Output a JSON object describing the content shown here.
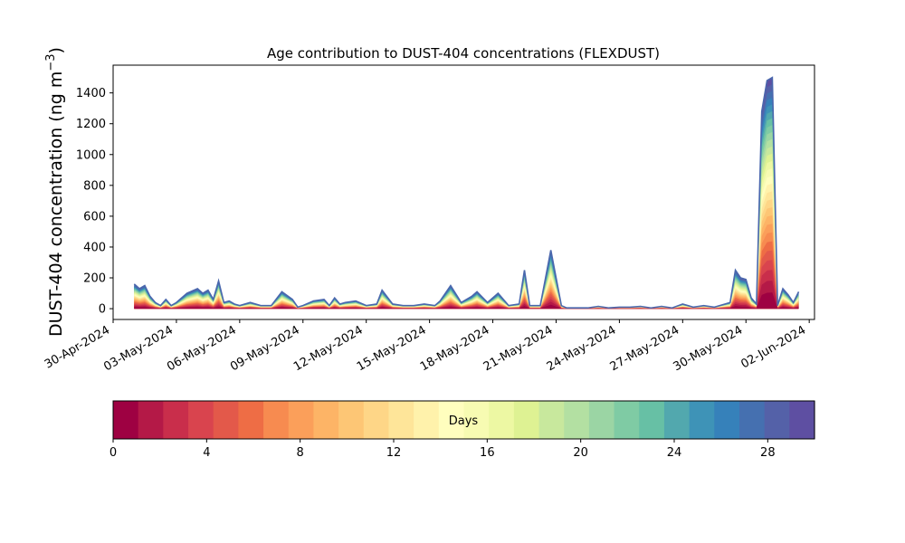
{
  "chart_data": {
    "type": "area",
    "title": "Age contribution to DUST-404 concentrations (FLEXDUST)",
    "ylabel_main": "DUST-404 concentration (ng m",
    "ylabel_sup": "−3",
    "ylabel_close": ")",
    "xlabel": "",
    "ylim": [
      -70,
      1580
    ],
    "xlim": [
      "2024-04-30T00:00",
      "2024-06-02T06:00"
    ],
    "yticks": [
      0,
      200,
      400,
      600,
      800,
      1000,
      1200,
      1400
    ],
    "ytick_labels": [
      "0",
      "200",
      "400",
      "600",
      "800",
      "1000",
      "1200",
      "1400"
    ],
    "xtick_dates": [
      "2024-04-30",
      "2024-05-03",
      "2024-05-06",
      "2024-05-09",
      "2024-05-12",
      "2024-05-15",
      "2024-05-18",
      "2024-05-21",
      "2024-05-24",
      "2024-05-27",
      "2024-05-30",
      "2024-06-02"
    ],
    "xtick_labels": [
      "30-Apr-2024",
      "03-May-2024",
      "06-May-2024",
      "09-May-2024",
      "12-May-2024",
      "15-May-2024",
      "18-May-2024",
      "21-May-2024",
      "24-May-2024",
      "27-May-2024",
      "30-May-2024",
      "02-Jun-2024"
    ],
    "grid": false,
    "stack_order": "age 0 days at bottom to age 30 days at top",
    "total": {
      "x": [
        "2024-05-01T00:00",
        "2024-05-01T06:00",
        "2024-05-01T12:00",
        "2024-05-01T18:00",
        "2024-05-02T00:00",
        "2024-05-02T06:00",
        "2024-05-02T12:00",
        "2024-05-02T18:00",
        "2024-05-03T00:00",
        "2024-05-03T12:00",
        "2024-05-04T00:00",
        "2024-05-04T06:00",
        "2024-05-04T12:00",
        "2024-05-04T18:00",
        "2024-05-05T00:00",
        "2024-05-05T06:00",
        "2024-05-05T12:00",
        "2024-05-05T18:00",
        "2024-05-06T00:00",
        "2024-05-06T12:00",
        "2024-05-07T00:00",
        "2024-05-07T12:00",
        "2024-05-08T00:00",
        "2024-05-08T12:00",
        "2024-05-08T18:00",
        "2024-05-09T00:00",
        "2024-05-09T12:00",
        "2024-05-10T00:00",
        "2024-05-10T06:00",
        "2024-05-10T12:00",
        "2024-05-10T18:00",
        "2024-05-11T00:00",
        "2024-05-11T12:00",
        "2024-05-12T00:00",
        "2024-05-12T12:00",
        "2024-05-12T18:00",
        "2024-05-13T06:00",
        "2024-05-13T18:00",
        "2024-05-14T06:00",
        "2024-05-14T18:00",
        "2024-05-15T06:00",
        "2024-05-15T12:00",
        "2024-05-16T00:00",
        "2024-05-16T12:00",
        "2024-05-17T00:00",
        "2024-05-17T06:00",
        "2024-05-17T18:00",
        "2024-05-18T06:00",
        "2024-05-18T18:00",
        "2024-05-19T06:00",
        "2024-05-19T12:00",
        "2024-05-19T18:00",
        "2024-05-20T06:00",
        "2024-05-20T18:00",
        "2024-05-21T06:00",
        "2024-05-21T12:00",
        "2024-05-21T18:00",
        "2024-05-22T12:00",
        "2024-05-23T00:00",
        "2024-05-23T12:00",
        "2024-05-24T00:00",
        "2024-05-24T12:00",
        "2024-05-25T00:00",
        "2024-05-25T12:00",
        "2024-05-26T00:00",
        "2024-05-26T12:00",
        "2024-05-27T00:00",
        "2024-05-27T12:00",
        "2024-05-28T00:00",
        "2024-05-28T12:00",
        "2024-05-29T00:00",
        "2024-05-29T06:00",
        "2024-05-29T12:00",
        "2024-05-29T18:00",
        "2024-05-30T00:00",
        "2024-05-30T06:00",
        "2024-05-30T12:00",
        "2024-05-30T18:00",
        "2024-05-31T00:00",
        "2024-05-31T06:00",
        "2024-05-31T12:00",
        "2024-05-31T18:00",
        "2024-06-01T00:00",
        "2024-06-01T06:00",
        "2024-06-01T12:00"
      ],
      "y": [
        160,
        130,
        150,
        80,
        40,
        20,
        60,
        20,
        40,
        100,
        130,
        100,
        120,
        60,
        180,
        40,
        50,
        30,
        20,
        40,
        20,
        20,
        110,
        60,
        10,
        20,
        50,
        60,
        20,
        70,
        30,
        40,
        50,
        20,
        30,
        120,
        30,
        20,
        20,
        30,
        20,
        50,
        150,
        40,
        80,
        110,
        40,
        100,
        20,
        30,
        250,
        20,
        20,
        380,
        20,
        5,
        5,
        5,
        15,
        5,
        10,
        10,
        15,
        5,
        15,
        5,
        30,
        10,
        20,
        10,
        30,
        40,
        250,
        200,
        190,
        70,
        30,
        1280,
        1480,
        1500,
        20,
        130,
        90,
        40,
        110
      ]
    },
    "colorbar": {
      "label": "Days",
      "min": 0,
      "max": 30,
      "ticks": [
        0,
        4,
        8,
        12,
        16,
        20,
        24,
        28
      ],
      "tick_labels": [
        "0",
        "4",
        "8",
        "12",
        "16",
        "20",
        "24",
        "28"
      ],
      "colormap": "Spectral",
      "colors": [
        "#9e0142",
        "#b41947",
        "#c92e4b",
        "#d9444e",
        "#e3594a",
        "#ee6d45",
        "#f78b50",
        "#fb9f5a",
        "#fdb466",
        "#fdc675",
        "#fed687",
        "#fee599",
        "#fff2ab",
        "#fffebe",
        "#f7fbb2",
        "#edf8a3",
        "#def293",
        "#c8e89d",
        "#b3e0a2",
        "#9bd5a4",
        "#7fcba4",
        "#67c0a5",
        "#52a8ae",
        "#3e93b7",
        "#3681ba",
        "#4570b0",
        "#5461a8",
        "#5e4fa2"
      ]
    }
  }
}
